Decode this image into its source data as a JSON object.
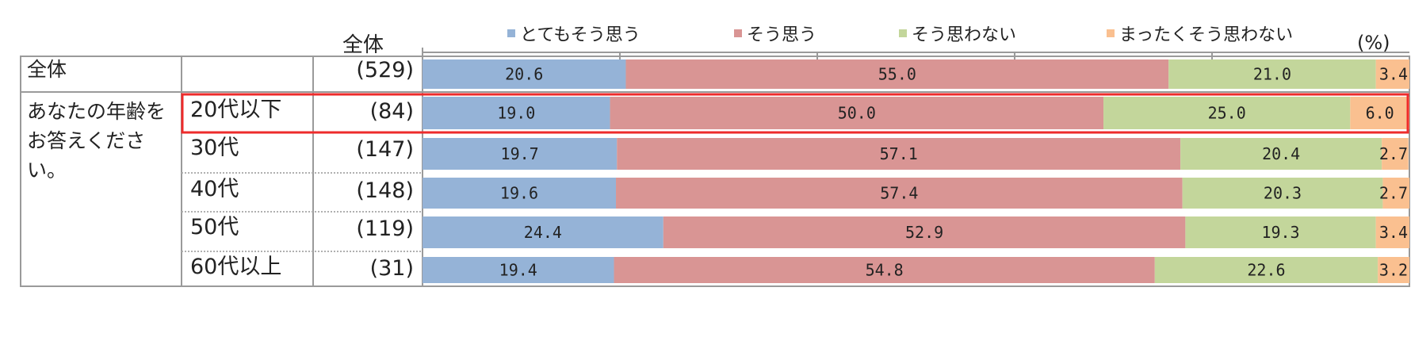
{
  "chart_data": {
    "type": "bar",
    "stacked": "horizontal",
    "header_total": "全体",
    "unit": "(%)",
    "series": [
      {
        "name": "とてもそう思う",
        "color": "#95b3d7"
      },
      {
        "name": "そう思う",
        "color": "#d99594"
      },
      {
        "name": "そう思わない",
        "color": "#c3d69b"
      },
      {
        "name": "まったくそう思わない",
        "color": "#fac090"
      }
    ],
    "group_label": "あなたの年齢をお答えください。",
    "rows": [
      {
        "label": "全体",
        "n": "(529)",
        "values": [
          20.6,
          55.0,
          21.0,
          3.4
        ],
        "labels": [
          "20.6",
          "55.0",
          "21.0",
          "3.4"
        ]
      },
      {
        "label": "20代以下",
        "n": "(84)",
        "values": [
          19.0,
          50.0,
          25.0,
          6.0
        ],
        "labels": [
          "19.0",
          "50.0",
          "25.0",
          "6.0"
        ],
        "highlight": true
      },
      {
        "label": "30代",
        "n": "(147)",
        "values": [
          19.7,
          57.1,
          20.4,
          2.7
        ],
        "labels": [
          "19.7",
          "57.1",
          "20.4",
          "2.7"
        ]
      },
      {
        "label": "40代",
        "n": "(148)",
        "values": [
          19.6,
          57.4,
          20.3,
          2.7
        ],
        "labels": [
          "19.6",
          "57.4",
          "20.3",
          "2.7"
        ]
      },
      {
        "label": "50代",
        "n": "(119)",
        "values": [
          24.4,
          52.9,
          19.3,
          3.4
        ],
        "labels": [
          "24.4",
          "52.9",
          "19.3",
          "3.4"
        ]
      },
      {
        "label": "60代以上",
        "n": "(31)",
        "values": [
          19.4,
          54.8,
          22.6,
          3.2
        ],
        "labels": [
          "19.4",
          "54.8",
          "22.6",
          "3.2"
        ]
      }
    ],
    "xlim": [
      0,
      100
    ],
    "highlight_color": "#ee2b2b"
  }
}
